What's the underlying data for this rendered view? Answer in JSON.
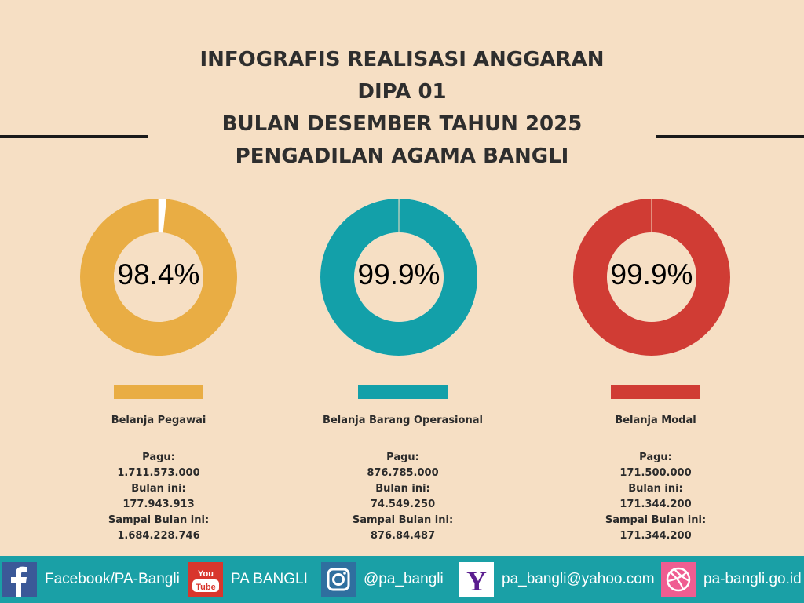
{
  "title": {
    "line1": "INFOGRAFIS REALISASI ANGGARAN",
    "line2": "DIPA 01",
    "line3": "BULAN DESEMBER TAHUN 2025",
    "line4": "PENGADILAN AGAMA BANGLI"
  },
  "chart_data": [
    {
      "type": "pie",
      "variant": "donut",
      "category": "Belanja Pegawai",
      "value_percent": 98.4,
      "label": "98.4%",
      "color": "#e9ad44",
      "details": [
        {
          "label": "Pagu:",
          "value": "1.711.573.000"
        },
        {
          "label": "Bulan ini:",
          "value": "177.943.913"
        },
        {
          "label": "Sampai Bulan ini:",
          "value": "1.684.228.746"
        }
      ]
    },
    {
      "type": "pie",
      "variant": "donut",
      "category": "Belanja Barang Operasional",
      "value_percent": 99.9,
      "label": "99.9%",
      "color": "#13a0a9",
      "details": [
        {
          "label": "Pagu:",
          "value": "876.785.000"
        },
        {
          "label": "Bulan ini:",
          "value": "74.549.250"
        },
        {
          "label": "Sampai Bulan ini:",
          "value": "876.84.487"
        }
      ]
    },
    {
      "type": "pie",
      "variant": "donut",
      "category": "Belanja Modal",
      "value_percent": 99.9,
      "label": "99.9%",
      "color": "#d03c34",
      "details": [
        {
          "label": "Pagu:",
          "value": "171.500.000"
        },
        {
          "label": "Bulan ini:",
          "value": "171.344.200"
        },
        {
          "label": "Sampai Bulan ini:",
          "value": "171.344.200"
        }
      ]
    }
  ],
  "footer": {
    "background": "#1aa0a6",
    "items": [
      {
        "icon": "facebook-icon",
        "text": "Facebook/PA-Bangli"
      },
      {
        "icon": "youtube-icon",
        "text": "PA BANGLI"
      },
      {
        "icon": "instagram-icon",
        "text": "@pa_bangli"
      },
      {
        "icon": "yahoo-icon",
        "text": "pa_bangli@yahoo.com"
      },
      {
        "icon": "dribbble-icon",
        "text": "pa-bangli.go.id"
      }
    ]
  }
}
